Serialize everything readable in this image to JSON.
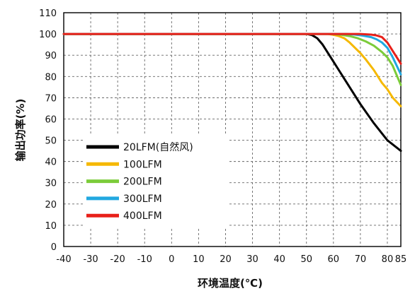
{
  "chart_data": {
    "type": "line",
    "xlabel": "环境温度(℃)",
    "ylabel": "输出功率(%)",
    "xlim": [
      -40,
      85
    ],
    "ylim": [
      0,
      110
    ],
    "x_ticks": [
      -40,
      -30,
      -20,
      -10,
      0,
      10,
      20,
      30,
      40,
      50,
      60,
      70,
      80,
      85
    ],
    "y_ticks": [
      0,
      10,
      20,
      30,
      40,
      50,
      60,
      70,
      80,
      90,
      100,
      110
    ],
    "grid": true,
    "legend_position": "lower-left",
    "series": [
      {
        "name": "20LFM(自然风)",
        "color": "#000000",
        "points": [
          [
            -40,
            100
          ],
          [
            50,
            100
          ],
          [
            52,
            99.5
          ],
          [
            54,
            98
          ],
          [
            56,
            95
          ],
          [
            58,
            91
          ],
          [
            60,
            87
          ],
          [
            62,
            83
          ],
          [
            65,
            77
          ],
          [
            70,
            67
          ],
          [
            75,
            58
          ],
          [
            80,
            50
          ],
          [
            85,
            45
          ]
        ]
      },
      {
        "name": "100LFM",
        "color": "#f5b800",
        "points": [
          [
            -40,
            100
          ],
          [
            58,
            100
          ],
          [
            60,
            99.6
          ],
          [
            62,
            99
          ],
          [
            64,
            98
          ],
          [
            66,
            96
          ],
          [
            68,
            93.5
          ],
          [
            70,
            91
          ],
          [
            72,
            88
          ],
          [
            75,
            83
          ],
          [
            78,
            77
          ],
          [
            80,
            74
          ],
          [
            82,
            70
          ],
          [
            85,
            66
          ]
        ]
      },
      {
        "name": "200LFM",
        "color": "#7ccc3a",
        "points": [
          [
            -40,
            100
          ],
          [
            60,
            100
          ],
          [
            63,
            99.6
          ],
          [
            66,
            99
          ],
          [
            69,
            98
          ],
          [
            72,
            96.5
          ],
          [
            75,
            94.5
          ],
          [
            78,
            91.5
          ],
          [
            80,
            89
          ],
          [
            82,
            85
          ],
          [
            85,
            76
          ]
        ]
      },
      {
        "name": "300LFM",
        "color": "#21a8e0",
        "points": [
          [
            -40,
            100
          ],
          [
            65,
            100
          ],
          [
            68,
            99.7
          ],
          [
            71,
            99.2
          ],
          [
            74,
            98.5
          ],
          [
            76,
            97.5
          ],
          [
            78,
            96
          ],
          [
            80,
            93.5
          ],
          [
            82,
            89
          ],
          [
            85,
            81
          ]
        ]
      },
      {
        "name": "400LFM",
        "color": "#e8201a",
        "points": [
          [
            -40,
            100
          ],
          [
            70,
            100
          ],
          [
            74,
            99.7
          ],
          [
            76,
            99.3
          ],
          [
            78,
            98.5
          ],
          [
            80,
            96
          ],
          [
            82,
            92
          ],
          [
            84,
            88
          ],
          [
            85,
            86
          ]
        ]
      }
    ]
  }
}
